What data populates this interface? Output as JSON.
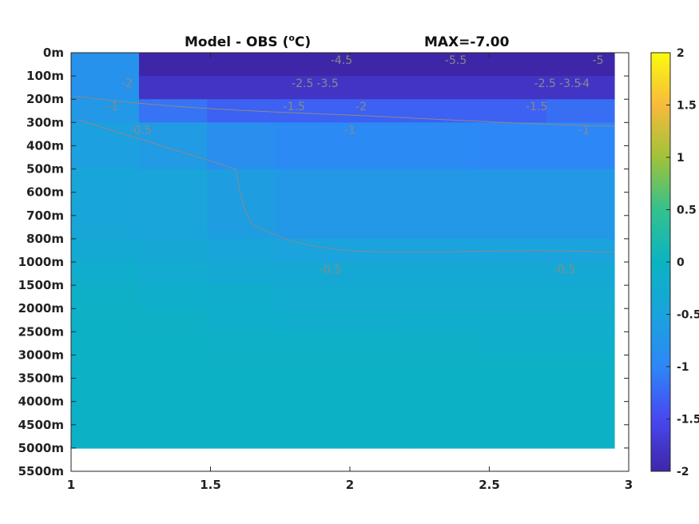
{
  "chart_data": {
    "type": "heatmap",
    "title": "Model - OBS (",
    "title_super": "o",
    "title_unit_end": "C)",
    "max_text": "MAX=-7.00",
    "x_ticks": [
      "1",
      "1.5",
      "2",
      "2.5",
      "3"
    ],
    "x_range": [
      1,
      3
    ],
    "y_ticks": [
      "0m",
      "100m",
      "200m",
      "300m",
      "400m",
      "500m",
      "600m",
      "700m",
      "800m",
      "1000m",
      "1500m",
      "2000m",
      "2500m",
      "3000m",
      "3500m",
      "4000m",
      "4500m",
      "5000m",
      "5500m"
    ],
    "colorbar": {
      "range": [
        -2,
        2
      ],
      "ticks": [
        "2",
        "1.5",
        "1",
        "0.5",
        "0",
        "-0.5",
        "-1",
        "-1.5",
        "-2"
      ],
      "colormap": "parula"
    },
    "field_rows": [
      {
        "depth": "0m",
        "values": [
          -0.8,
          -2.0,
          -2.0,
          -2.0,
          -2.0,
          -2.0,
          -2.0,
          -2.0
        ]
      },
      {
        "depth": "100m",
        "values": [
          -0.8,
          -1.8,
          -1.8,
          -1.8,
          -1.8,
          -1.8,
          -1.8,
          -1.8
        ]
      },
      {
        "depth": "200m",
        "values": [
          -0.7,
          -1.15,
          -1.3,
          -1.3,
          -1.3,
          -1.3,
          -1.3,
          -1.2
        ]
      },
      {
        "depth": "300m",
        "values": [
          -0.55,
          -0.65,
          -0.85,
          -0.95,
          -0.95,
          -0.95,
          -1.0,
          -1.0
        ]
      },
      {
        "depth": "500m",
        "values": [
          -0.4,
          -0.45,
          -0.6,
          -0.7,
          -0.7,
          -0.7,
          -0.7,
          -0.7
        ]
      },
      {
        "depth": "800m",
        "values": [
          -0.3,
          -0.35,
          -0.4,
          -0.5,
          -0.5,
          -0.5,
          -0.5,
          -0.5
        ]
      },
      {
        "depth": "1000m",
        "values": [
          -0.2,
          -0.25,
          -0.3,
          -0.35,
          -0.35,
          -0.35,
          -0.35,
          -0.35
        ]
      },
      {
        "depth": "1500m",
        "values": [
          -0.1,
          -0.15,
          -0.2,
          -0.25,
          -0.25,
          -0.25,
          -0.25,
          -0.25
        ]
      },
      {
        "depth": "2000m",
        "values": [
          -0.05,
          -0.1,
          -0.15,
          -0.2,
          -0.2,
          -0.2,
          -0.2,
          -0.2
        ]
      },
      {
        "depth": "2500m",
        "values": [
          -0.05,
          -0.05,
          -0.1,
          -0.1,
          -0.1,
          -0.12,
          -0.15,
          -0.15
        ]
      },
      {
        "depth": "3000m",
        "values": [
          -0.05,
          -0.05,
          -0.05,
          -0.05,
          -0.05,
          -0.05,
          -0.05,
          -0.05
        ]
      },
      {
        "depth": "5000m",
        "values": [
          -0.05,
          -0.05,
          -0.05,
          -0.05,
          -0.05,
          -0.05,
          -0.05,
          -0.05
        ]
      }
    ],
    "contour_labels": [
      {
        "text": "-2",
        "x": 1.2,
        "depth": "100m"
      },
      {
        "text": "-1",
        "x": 1.15,
        "depth": "200m"
      },
      {
        "text": "-0.5",
        "x": 1.25,
        "depth": "300m"
      },
      {
        "text": "-4.5",
        "x": 1.97,
        "depth": "0m"
      },
      {
        "text": "-2.5",
        "x": 1.83,
        "depth": "100m"
      },
      {
        "text": "-3.5",
        "x": 1.92,
        "depth": "100m"
      },
      {
        "text": "-1.5",
        "x": 1.8,
        "depth": "200m"
      },
      {
        "text": "-2",
        "x": 2.04,
        "depth": "200m"
      },
      {
        "text": "-1",
        "x": 2.0,
        "depth": "300m"
      },
      {
        "text": "-5.5",
        "x": 2.38,
        "depth": "0m"
      },
      {
        "text": "-2.5",
        "x": 2.7,
        "depth": "100m"
      },
      {
        "text": "-3.5",
        "x": 2.79,
        "depth": "100m"
      },
      {
        "text": "-4",
        "x": 2.84,
        "depth": "100m"
      },
      {
        "text": "-5",
        "x": 2.89,
        "depth": "0m"
      },
      {
        "text": "-1.5",
        "x": 2.67,
        "depth": "200m"
      },
      {
        "text": "-1",
        "x": 2.84,
        "depth": "300m"
      },
      {
        "text": "-0.5",
        "x": 1.93,
        "depth": "1000m"
      },
      {
        "text": "-0.5",
        "x": 2.77,
        "depth": "1000m"
      }
    ]
  }
}
